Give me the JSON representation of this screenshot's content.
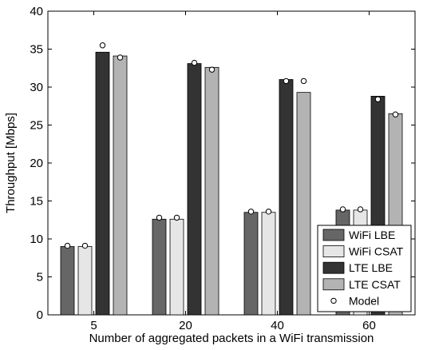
{
  "chart_data": {
    "type": "bar",
    "xlabel": "Number of aggregated packets in a WiFi transmission",
    "ylabel": "Throughput [Mbps]",
    "ylim": [
      0,
      40
    ],
    "yticks": [
      0,
      5,
      10,
      15,
      20,
      25,
      30,
      35,
      40
    ],
    "categories": [
      "5",
      "20",
      "40",
      "60"
    ],
    "grid": false,
    "legend_position": "bottom-right",
    "series": [
      {
        "name": "WiFi LBE",
        "color": "#666666",
        "values": [
          9.0,
          12.6,
          13.5,
          13.8
        ]
      },
      {
        "name": "WiFi CSAT",
        "color": "#e6e6e6",
        "values": [
          9.0,
          12.6,
          13.5,
          13.8
        ]
      },
      {
        "name": "LTE LBE",
        "color": "#333333",
        "values": [
          34.6,
          33.1,
          31.0,
          28.8
        ]
      },
      {
        "name": "LTE CSAT",
        "color": "#b3b3b3",
        "values": [
          34.1,
          32.6,
          29.3,
          26.5
        ]
      }
    ],
    "model": {
      "name": "Model",
      "marker": "circle",
      "values": [
        [
          9.1,
          9.1,
          35.5,
          33.9
        ],
        [
          12.8,
          12.8,
          33.2,
          32.3
        ],
        [
          13.6,
          13.6,
          30.8,
          30.8
        ],
        [
          13.9,
          13.9,
          28.4,
          26.4
        ]
      ]
    }
  }
}
